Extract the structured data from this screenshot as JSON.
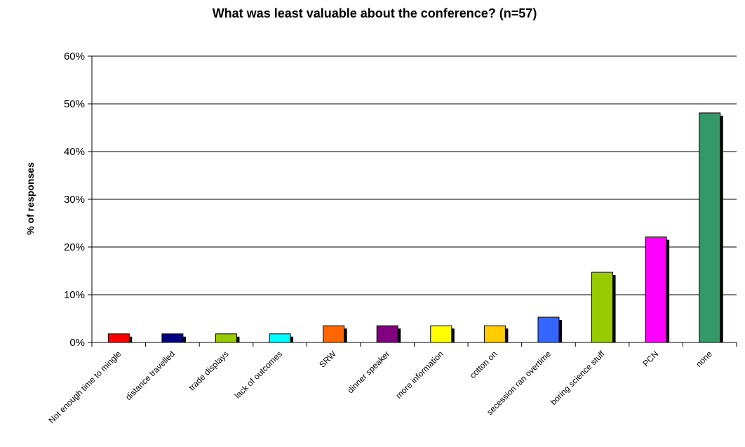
{
  "chart_data": {
    "type": "bar",
    "title": "What was least valuable about the conference? (n=57)",
    "xlabel": "",
    "ylabel": "% of responses",
    "ylim": [
      0,
      60
    ],
    "yticks": [
      "0%",
      "10%",
      "20%",
      "30%",
      "40%",
      "50%",
      "60%"
    ],
    "grid": true,
    "legend": "none",
    "categories": [
      "Not enough time to mingle",
      "distance travelled",
      "trade displays",
      "lack of outcomes",
      "SRW",
      "dinner speaker",
      "more information",
      "cotton on",
      "secession ran overtime",
      "boring science stuff",
      "PCN",
      "none"
    ],
    "values": [
      1.8,
      1.8,
      1.8,
      1.8,
      3.5,
      3.5,
      3.5,
      3.5,
      5.3,
      14.7,
      22.1,
      48.1
    ],
    "colors": [
      "#ff0000",
      "#000080",
      "#99cc00",
      "#00ffff",
      "#ff6600",
      "#800080",
      "#ffff00",
      "#ffcc00",
      "#3366ff",
      "#99cc00",
      "#ff00ff",
      "#339966"
    ]
  }
}
